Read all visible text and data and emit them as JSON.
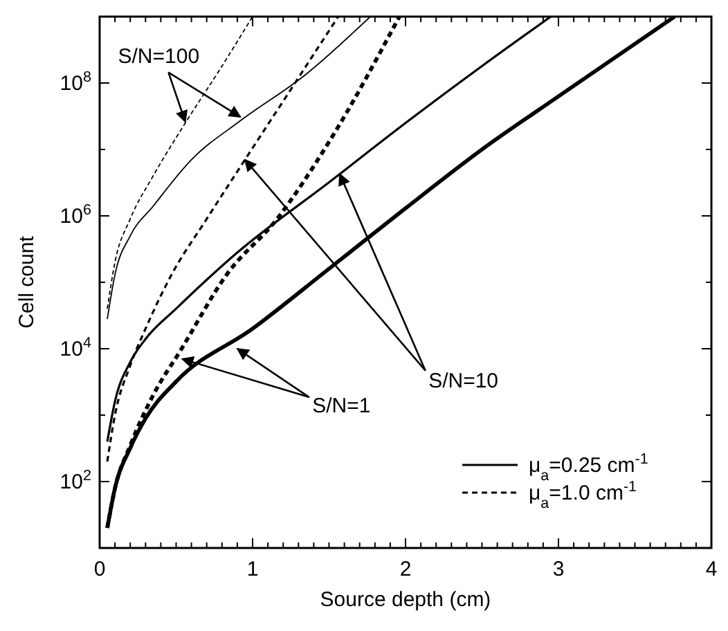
{
  "chart_data": {
    "type": "line",
    "xlabel": "Source depth (cm)",
    "ylabel": "Cell count",
    "log": "y",
    "legend": "bottom right",
    "grid": false,
    "marker": "none",
    "xlim": [
      0,
      4
    ],
    "ylim": [
      10,
      1000000000
    ],
    "xticks": [
      0,
      {
        "value": 0.1,
        "label": null
      },
      {
        "value": 0.2,
        "label": null
      },
      {
        "value": 0.3,
        "label": null
      },
      {
        "value": 0.4,
        "label": null
      },
      {
        "value": 0.5,
        "label": null
      },
      {
        "value": 0.6,
        "label": null
      },
      {
        "value": 0.7,
        "label": null
      },
      {
        "value": 0.8,
        "label": null
      },
      {
        "value": 0.9,
        "label": null
      },
      1,
      {
        "value": 1.1,
        "label": null
      },
      {
        "value": 1.2,
        "label": null
      },
      {
        "value": 1.3,
        "label": null
      },
      {
        "value": 1.4,
        "label": null
      },
      {
        "value": 1.5,
        "label": null
      },
      {
        "value": 1.6,
        "label": null
      },
      {
        "value": 1.7,
        "label": null
      },
      {
        "value": 1.8,
        "label": null
      },
      {
        "value": 1.9,
        "label": null
      },
      2,
      {
        "value": 2.1,
        "label": null
      },
      {
        "value": 2.2,
        "label": null
      },
      {
        "value": 2.3,
        "label": null
      },
      {
        "value": 2.4,
        "label": null
      },
      {
        "value": 2.5,
        "label": null
      },
      {
        "value": 2.6,
        "label": null
      },
      {
        "value": 2.7,
        "label": null
      },
      {
        "value": 2.8,
        "label": null
      },
      {
        "value": 2.9,
        "label": null
      },
      3,
      {
        "value": 3.1,
        "label": null
      },
      {
        "value": 3.2,
        "label": null
      },
      {
        "value": 3.3,
        "label": null
      },
      {
        "value": 3.4,
        "label": null
      },
      {
        "value": 3.5,
        "label": null
      },
      {
        "value": 3.6,
        "label": null
      },
      {
        "value": 3.7,
        "label": null
      },
      {
        "value": 3.8,
        "label": null
      },
      {
        "value": 3.9,
        "label": null
      },
      4
    ],
    "yticks": [
      {
        "value": 100,
        "label": "10$^{2}$"
      },
      {
        "value": 1000,
        "label": null
      },
      {
        "value": 10000,
        "label": "10$^{4}$"
      },
      {
        "value": 100000,
        "label": null
      },
      {
        "value": 1000000,
        "label": "10$^{6}$"
      },
      {
        "value": 10000000,
        "label": null
      },
      {
        "value": 100000000,
        "label": "10$^{8}$"
      }
    ],
    "series": [
      {
        "color": "#000000",
        "line_style": "solid",
        "x": [
          0.05,
          0.1,
          0.2,
          0.3,
          0.5,
          1.0,
          1.5,
          2,
          2.5,
          3,
          3.76
        ],
        "values": [
          20,
          79,
          320,
          890,
          3200,
          20000,
          160000,
          1300000,
          10000000,
          63000000,
          1000000000
        ]
      },
      {
        "name": "μ$_{a}$=0.25 cm$^{-1}$",
        "color": "#000000",
        "line_style": "solid",
        "x": [
          0.05,
          0.1,
          0.2,
          0.3,
          0.5,
          0.9,
          1.5,
          2,
          2.5,
          2.95
        ],
        "values": [
          400,
          1600,
          6300,
          14000,
          40000,
          280000,
          3200000,
          25000000,
          180000000,
          1000000000
        ]
      },
      {
        "color": "#000000",
        "line_style": "solid",
        "x": [
          0.05,
          0.1,
          0.2,
          0.35,
          0.6,
          0.92,
          1.34,
          1.77
        ],
        "values": [
          28000,
          130000,
          500000,
          1400000,
          7000000,
          27000000,
          130000000,
          1000000000
        ]
      },
      {
        "color": "#000000",
        "line_style": "dashed",
        "x": [
          0.05,
          0.1,
          0.2,
          0.35,
          0.53,
          0.83,
          1.16,
          1.5,
          1.96
        ],
        "values": [
          20,
          79,
          350,
          2000,
          9500,
          130000,
          900000,
          13000000,
          1000000000
        ]
      },
      {
        "name": "μ$_{a}$=1.0 cm$^{-1}$",
        "color": "#000000",
        "line_style": "dashed",
        "x": [
          0.05,
          0.1,
          0.2,
          0.3,
          0.47,
          0.7,
          0.95,
          1.25,
          1.56
        ],
        "values": [
          200,
          1000,
          5600,
          20000,
          130000,
          900000,
          7000000,
          80000000,
          1000000000
        ]
      },
      {
        "color": "#000000",
        "line_style": "dashed",
        "x": [
          0.05,
          0.1,
          0.2,
          0.35,
          0.56,
          0.8,
          1.0
        ],
        "values": [
          40000,
          200000,
          900000,
          4000000,
          25000000,
          180000000,
          1000000000
        ]
      }
    ],
    "annotations": [
      {
        "text": "S/N=100",
        "x": 0.56,
        "y": 26000000
      },
      {
        "text": "S/N=10",
        "x": 0.95,
        "y": 7000000
      },
      {
        "text": "S/N=1",
        "x": 0.54,
        "y": 7000
      }
    ]
  }
}
